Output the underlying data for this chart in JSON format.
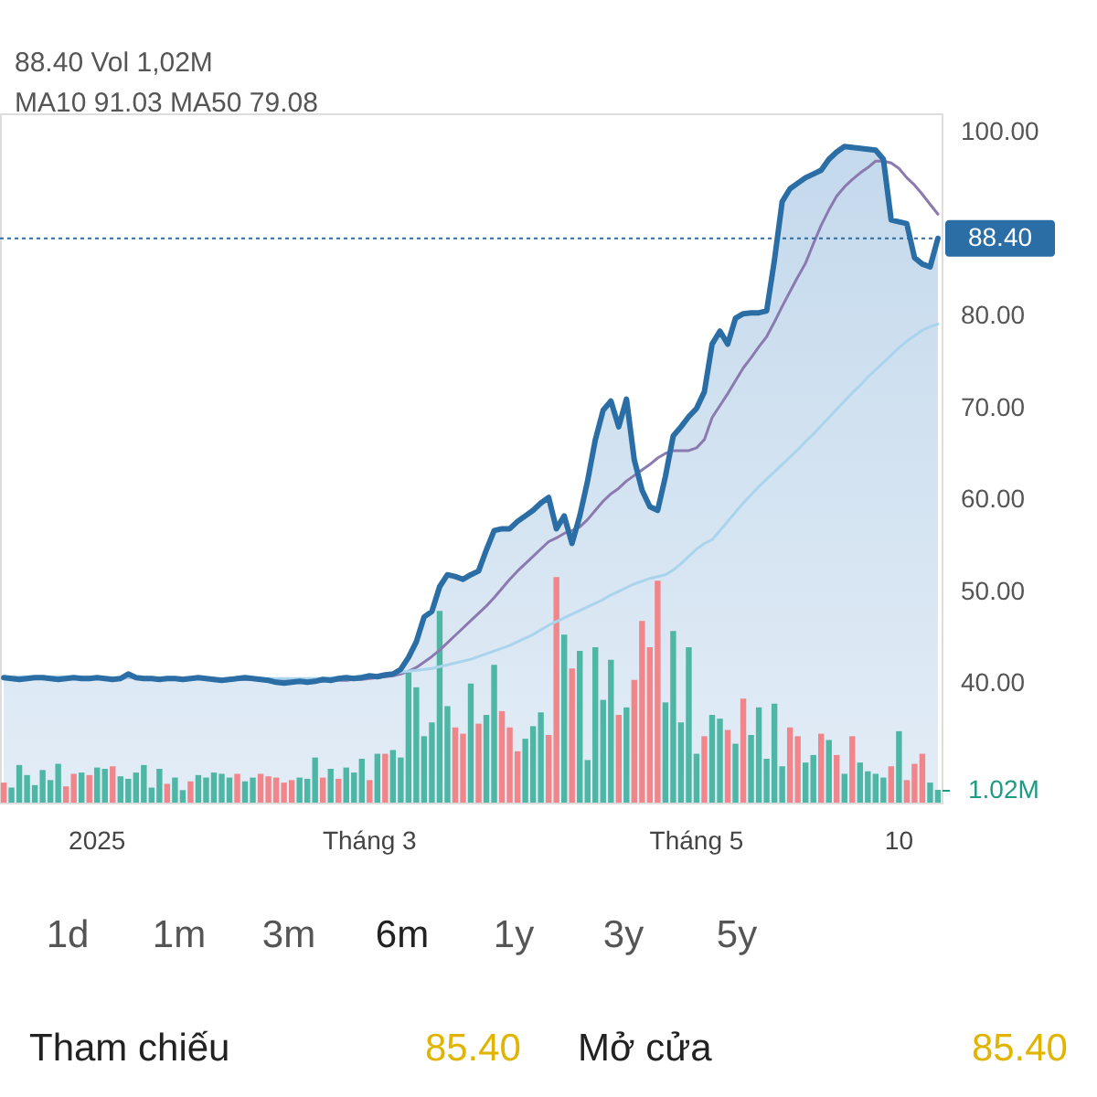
{
  "chart_data": {
    "type": "area",
    "categories": [
      null,
      null,
      null,
      null,
      null,
      null,
      null,
      null,
      null,
      null,
      null,
      null,
      "2025",
      null,
      null,
      null,
      null,
      null,
      null,
      null,
      null,
      null,
      null,
      null,
      null,
      null,
      null,
      null,
      null,
      null,
      null,
      null,
      null,
      null,
      null,
      null,
      null,
      null,
      null,
      null,
      null,
      null,
      null,
      null,
      null,
      null,
      null,
      "Tháng 3",
      null,
      null,
      null,
      null,
      null,
      null,
      null,
      null,
      null,
      null,
      null,
      null,
      null,
      null,
      null,
      null,
      null,
      null,
      null,
      null,
      null,
      null,
      null,
      null,
      null,
      null,
      null,
      null,
      null,
      null,
      null,
      null,
      null,
      null,
      null,
      null,
      null,
      null,
      null,
      null,
      null,
      "Tháng 5",
      null,
      null,
      null,
      null,
      null,
      null,
      null,
      null,
      null,
      null,
      null,
      null,
      null,
      null,
      null,
      null,
      null,
      null,
      null,
      null,
      null,
      null,
      null,
      null,
      null,
      "10",
      null,
      null,
      null,
      null,
      null
    ],
    "series": [
      {
        "color": "#2b6ea6",
        "values": [
          40.6,
          40.5,
          40.4,
          40.5,
          40.6,
          40.6,
          40.5,
          40.4,
          40.5,
          40.6,
          40.5,
          40.5,
          40.6,
          40.5,
          40.4,
          40.5,
          41.0,
          40.6,
          40.5,
          40.5,
          40.4,
          40.5,
          40.5,
          40.4,
          40.5,
          40.6,
          40.5,
          40.4,
          40.3,
          40.4,
          40.5,
          40.6,
          40.5,
          40.4,
          40.3,
          40.1,
          40.0,
          40.1,
          40.2,
          40.1,
          40.2,
          40.4,
          40.3,
          40.5,
          40.6,
          40.5,
          40.6,
          40.8,
          40.7,
          40.9,
          41.0,
          41.5,
          42.8,
          44.5,
          47.2,
          47.8,
          50.5,
          51.8,
          51.6,
          51.3,
          51.8,
          52.2,
          54.5,
          56.6,
          56.8,
          56.8,
          57.6,
          58.2,
          58.8,
          59.6,
          60.2,
          56.8,
          58.2,
          55.2,
          58.2,
          62.0,
          66.5,
          69.7,
          70.7,
          67.9,
          70.9,
          64.3,
          61.0,
          59.2,
          58.8,
          62.5,
          66.9,
          67.9,
          69.0,
          69.9,
          71.7,
          76.9,
          78.3,
          76.9,
          79.7,
          80.2,
          80.3,
          80.3,
          80.5,
          86.0,
          92.4,
          93.8,
          94.4,
          95.0,
          95.4,
          95.8,
          97.0,
          97.8,
          98.4,
          98.3,
          98.2,
          98.1,
          98.0,
          97.0,
          90.4,
          90.2,
          90.0,
          86.3,
          85.6,
          85.3,
          88.4
        ]
      },
      {
        "type": "bar",
        "axis": "y2",
        "values": [
          1.6,
          1.2,
          3.0,
          2.2,
          1.4,
          2.6,
          1.8,
          3.1,
          1.3,
          2.3,
          2.4,
          2.2,
          2.8,
          2.7,
          2.9,
          2.1,
          1.9,
          2.4,
          3.0,
          1.2,
          2.7,
          1.5,
          2.0,
          1.0,
          1.7,
          2.2,
          2.0,
          2.4,
          2.3,
          2.0,
          2.3,
          1.7,
          2.0,
          2.3,
          2.1,
          2.0,
          1.6,
          1.8,
          2.0,
          1.9,
          3.6,
          2.0,
          2.7,
          1.9,
          2.8,
          2.4,
          3.5,
          1.8,
          3.9,
          3.9,
          4.2,
          3.6,
          10.4,
          9.2,
          5.3,
          6.4,
          15.3,
          7.7,
          6.0,
          5.5,
          9.5,
          6.3,
          7.0,
          11.0,
          7.3,
          6.0,
          4.1,
          5.1,
          6.1,
          7.2,
          5.4,
          18.0,
          13.4,
          10.7,
          12.1,
          3.4,
          12.4,
          8.2,
          11.4,
          7.0,
          7.6,
          9.8,
          14.5,
          12.4,
          17.7,
          8.0,
          13.7,
          6.4,
          12.4,
          3.9,
          5.3,
          7.0,
          6.7,
          5.8,
          4.7,
          8.3,
          5.4,
          7.6,
          3.5,
          7.9,
          2.9,
          6.0,
          5.3,
          3.2,
          3.8,
          5.5,
          5.0,
          3.8,
          2.3,
          5.3,
          3.2,
          2.5,
          2.3,
          2.0,
          2.9,
          5.7,
          1.8,
          3.1,
          3.9,
          1.6,
          1.02
        ],
        "colors": [
          "#f0868a",
          "#4db6a4",
          "#4db6a4",
          "#4db6a4",
          "#4db6a4",
          "#4db6a4",
          "#4db6a4",
          "#4db6a4",
          "#f0868a",
          "#f0868a",
          "#4db6a4",
          "#f0868a",
          "#4db6a4",
          "#4db6a4",
          "#f0868a",
          "#4db6a4",
          "#4db6a4",
          "#4db6a4",
          "#4db6a4",
          "#4db6a4",
          "#4db6a4",
          "#f0868a",
          "#4db6a4",
          "#4db6a4",
          "#f0868a",
          "#4db6a4",
          "#4db6a4",
          "#4db6a4",
          "#4db6a4",
          "#4db6a4",
          "#f0868a",
          "#4db6a4",
          "#4db6a4",
          "#f0868a",
          "#f0868a",
          "#f0868a",
          "#f0868a",
          "#f0868a",
          "#4db6a4",
          "#4db6a4",
          "#4db6a4",
          "#f0868a",
          "#4db6a4",
          "#f0868a",
          "#4db6a4",
          "#4db6a4",
          "#4db6a4",
          "#f0868a",
          "#4db6a4",
          "#f0868a",
          "#4db6a4",
          "#4db6a4",
          "#4db6a4",
          "#4db6a4",
          "#4db6a4",
          "#4db6a4",
          "#4db6a4",
          "#4db6a4",
          "#f0868a",
          "#f0868a",
          "#4db6a4",
          "#f0868a",
          "#4db6a4",
          "#4db6a4",
          "#f0868a",
          "#f0868a",
          "#f0868a",
          "#4db6a4",
          "#4db6a4",
          "#4db6a4",
          "#f0868a",
          "#f0868a",
          "#4db6a4",
          "#f0868a",
          "#4db6a4",
          "#4db6a4",
          "#4db6a4",
          "#4db6a4",
          "#4db6a4",
          "#f0868a",
          "#4db6a4",
          "#f0868a",
          "#f0868a",
          "#f0868a",
          "#f0868a",
          "#4db6a4",
          "#4db6a4",
          "#4db6a4",
          "#4db6a4",
          "#4db6a4",
          "#f0868a",
          "#4db6a4",
          "#4db6a4",
          "#f0868a",
          "#4db6a4",
          "#f0868a",
          "#4db6a4",
          "#4db6a4",
          "#4db6a4",
          "#4db6a4",
          "#4db6a4",
          "#f0868a",
          "#f0868a",
          "#4db6a4",
          "#4db6a4",
          "#f0868a",
          "#4db6a4",
          "#f0868a",
          "#4db6a4",
          "#f0868a",
          "#4db6a4",
          "#4db6a4",
          "#4db6a4",
          "#4db6a4",
          "#f0868a",
          "#4db6a4",
          "#f0868a",
          "#f0868a",
          "#f0868a",
          "#4db6a4",
          "#4db6a4"
        ]
      },
      {
        "type": "line",
        "color": "#8a7ab0",
        "values": [
          40.6,
          40.6,
          40.5,
          40.5,
          40.5,
          40.5,
          40.5,
          40.5,
          40.5,
          40.5,
          40.5,
          40.5,
          40.5,
          40.5,
          40.5,
          40.5,
          40.6,
          40.6,
          40.6,
          40.6,
          40.5,
          40.5,
          40.5,
          40.5,
          40.5,
          40.5,
          40.5,
          40.5,
          40.4,
          40.4,
          40.4,
          40.4,
          40.4,
          40.4,
          40.4,
          40.3,
          40.3,
          40.3,
          40.2,
          40.2,
          40.2,
          40.2,
          40.3,
          40.3,
          40.3,
          40.4,
          40.4,
          40.5,
          40.6,
          40.7,
          40.8,
          41.0,
          41.3,
          41.7,
          42.3,
          42.9,
          43.6,
          44.4,
          45.2,
          46.0,
          46.8,
          47.6,
          48.4,
          49.3,
          50.3,
          51.3,
          52.2,
          53.0,
          53.8,
          54.6,
          55.4,
          55.8,
          56.3,
          56.6,
          57.0,
          57.8,
          58.8,
          59.8,
          60.6,
          61.2,
          62.0,
          62.6,
          63.2,
          63.8,
          64.5,
          65.0,
          65.3,
          65.3,
          65.3,
          65.6,
          66.5,
          68.9,
          70.2,
          71.5,
          72.9,
          74.3,
          75.4,
          76.6,
          77.7,
          79.3,
          81.0,
          82.6,
          84.2,
          85.7,
          87.8,
          89.8,
          91.5,
          93.0,
          94.0,
          94.8,
          95.5,
          96.1,
          96.8,
          96.8,
          96.6,
          96.0,
          95.0,
          94.2,
          93.2,
          92.1,
          91.03
        ]
      },
      {
        "type": "line",
        "color": "#a9d4ec",
        "values": [
          40.7,
          40.7,
          40.7,
          40.7,
          40.7,
          40.7,
          40.7,
          40.7,
          40.7,
          40.7,
          40.7,
          40.7,
          40.6,
          40.6,
          40.6,
          40.6,
          40.6,
          40.6,
          40.6,
          40.6,
          40.6,
          40.6,
          40.6,
          40.6,
          40.6,
          40.6,
          40.5,
          40.5,
          40.5,
          40.5,
          40.5,
          40.5,
          40.5,
          40.5,
          40.5,
          40.5,
          40.5,
          40.5,
          40.5,
          40.5,
          40.5,
          40.5,
          40.6,
          40.6,
          40.6,
          40.7,
          40.8,
          40.8,
          40.9,
          41.0,
          41.1,
          41.2,
          41.3,
          41.4,
          41.5,
          41.6,
          41.8,
          42.0,
          42.2,
          42.4,
          42.6,
          42.9,
          43.2,
          43.5,
          43.8,
          44.1,
          44.5,
          44.9,
          45.3,
          45.8,
          46.3,
          46.7,
          47.1,
          47.5,
          47.9,
          48.3,
          48.7,
          49.1,
          49.6,
          50.0,
          50.4,
          50.8,
          51.1,
          51.4,
          51.6,
          51.8,
          52.3,
          53.0,
          53.8,
          54.6,
          55.2,
          55.6,
          56.6,
          57.6,
          58.6,
          59.6,
          60.5,
          61.4,
          62.2,
          63.0,
          63.8,
          64.6,
          65.4,
          66.3,
          67.1,
          68.0,
          68.9,
          69.8,
          70.7,
          71.6,
          72.4,
          73.3,
          74.1,
          74.9,
          75.7,
          76.5,
          77.2,
          77.8,
          78.4,
          78.8,
          79.08
        ]
      }
    ],
    "ylim": [
      27,
      102
    ],
    "yticks": [
      {
        "value": 40,
        "label": "40.00"
      },
      {
        "value": 50,
        "label": "50.00"
      },
      {
        "value": 60,
        "label": "60.00"
      },
      {
        "value": 70,
        "label": "70.00"
      },
      {
        "value": 80,
        "label": "80.00"
      },
      {
        "value": 100,
        "label": "100.00"
      }
    ],
    "y2lim": [
      0,
      55
    ],
    "y2ticks": [
      {
        "value": 1.02,
        "label": "1.02M"
      }
    ],
    "ref_lines": [
      {
        "axis": "y",
        "value": 88.4,
        "label": "88.40",
        "color": "#2b6ea6",
        "line_style": "dotted"
      }
    ],
    "annotations": [
      "88.40 Vol 1,02M",
      "MA10 91.03 MA50 79.08",
      "1d",
      "1m",
      "3m",
      "6m",
      "1y",
      "3y",
      "5y",
      "Tham chiếu",
      "85.40",
      "Mở cửa",
      "85.40"
    ],
    "grid": false,
    "marker": "none"
  }
}
